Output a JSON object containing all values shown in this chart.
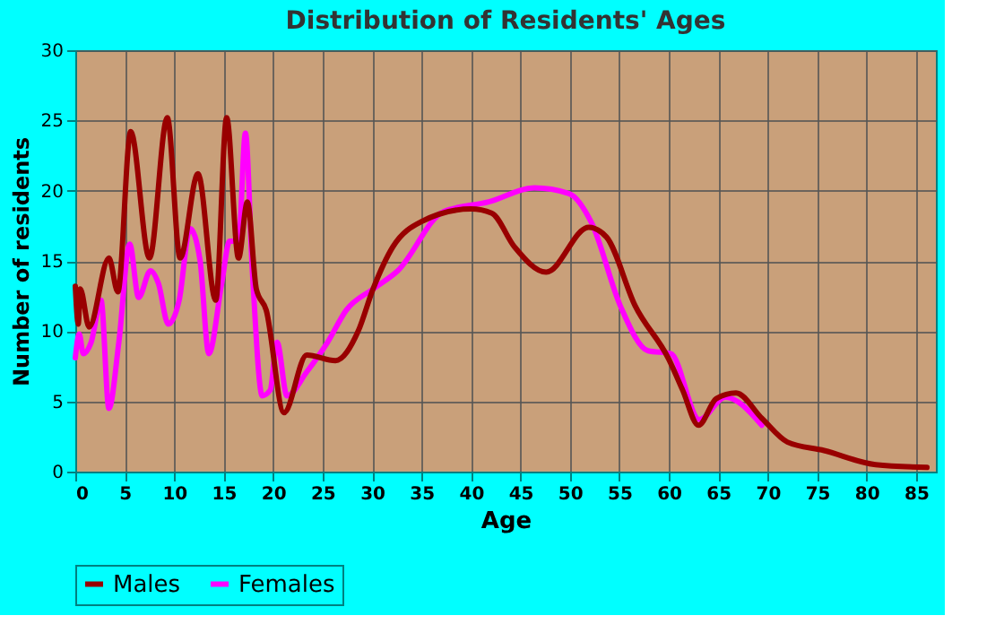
{
  "chart_data": {
    "type": "line",
    "title": "Distribution of Residents' Ages",
    "xlabel": "Age",
    "ylabel": "Number of residents",
    "xlim": [
      0,
      87
    ],
    "xticks": [
      0,
      5,
      10,
      15,
      20,
      25,
      30,
      35,
      40,
      45,
      50,
      55,
      60,
      65,
      70,
      75,
      80,
      85
    ],
    "ylim": [
      0,
      30
    ],
    "yticks": [
      0,
      5,
      10,
      15,
      20,
      25,
      30
    ],
    "grid": true,
    "legend": "bottom",
    "line_style": "solid",
    "series": [
      {
        "name": "Males",
        "color": "#990000",
        "x": [
          0,
          0.3,
          0.5,
          1.4,
          3.4,
          4.3,
          5.6,
          7.5,
          9.3,
          10.6,
          12.4,
          14.2,
          15.3,
          16.5,
          17.4,
          18.3,
          19.3,
          21.1,
          23.4,
          26.3,
          28.6,
          30.1,
          32.1,
          35,
          40,
          42.1,
          44.4,
          47.6,
          51.9,
          53.7,
          56.6,
          60,
          61.4,
          63,
          64.8,
          66.8,
          69.4,
          72,
          75.7,
          80.9,
          86.1
        ],
        "values": [
          13.2,
          10.5,
          13,
          10.3,
          15.2,
          12.8,
          24.2,
          15.2,
          25.2,
          15.2,
          21.2,
          12.2,
          25.2,
          15.2,
          19.2,
          13,
          11.5,
          4.2,
          8.3,
          7.9,
          10,
          13,
          16,
          17.8,
          18.7,
          18.4,
          16,
          14.2,
          17.4,
          16.7,
          11.8,
          8,
          5.8,
          3.3,
          5.2,
          5.6,
          3.8,
          2.1,
          1.5,
          0.5,
          0.3
        ]
      },
      {
        "name": "Females",
        "color": "#ff00ff",
        "x": [
          0,
          0.4,
          0.8,
          1.6,
          2.6,
          3.4,
          4.4,
          5.5,
          6.4,
          7.6,
          8.4,
          9.4,
          10.5,
          11.6,
          12.6,
          13.5,
          14.8,
          15.6,
          16.5,
          17.2,
          17.9,
          18.9,
          19.7,
          20.4,
          21.4,
          23.4,
          25.5,
          27.4,
          30.1,
          32.6,
          37.2,
          41.8,
          46.4,
          49.9,
          52.2,
          55.1,
          57.9,
          60.2,
          63.1,
          65.7,
          69.4
        ],
        "values": [
          8.1,
          9.8,
          8.4,
          9.2,
          12.2,
          4.5,
          9.2,
          16.2,
          12.4,
          14.3,
          13.4,
          10.5,
          12.2,
          17.3,
          15.1,
          8.4,
          13.4,
          16.4,
          16.4,
          24.1,
          14.3,
          5.4,
          5.8,
          9.2,
          5.4,
          7.1,
          9.2,
          11.5,
          13,
          14.3,
          18.5,
          19.2,
          20.2,
          19.8,
          17.7,
          11.8,
          8.6,
          8.4,
          3.7,
          5.3,
          3.3
        ]
      }
    ]
  }
}
